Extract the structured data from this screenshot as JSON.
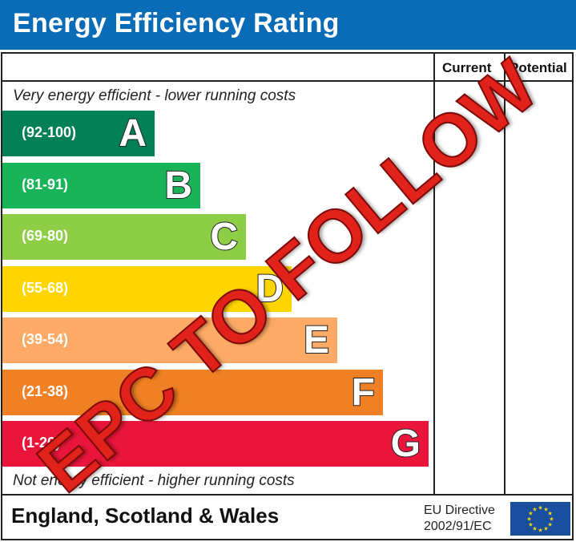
{
  "header": {
    "title": "Energy Efficiency Rating"
  },
  "columns": {
    "current": "Current",
    "potential": "Potential"
  },
  "captions": {
    "top": "Very energy efficient - lower running costs",
    "bottom": "Not energy efficient - higher running costs"
  },
  "chart_data": {
    "type": "bar",
    "title": "Energy Efficiency Rating",
    "categories": [
      "A",
      "B",
      "C",
      "D",
      "E",
      "F",
      "G"
    ],
    "ranges": [
      "(92-100)",
      "(81-91)",
      "(69-80)",
      "(55-68)",
      "(39-54)",
      "(21-38)",
      "(1-20)"
    ],
    "colors": [
      "#008054",
      "#19b459",
      "#8dce46",
      "#ffd500",
      "#fcaa65",
      "#ef8023",
      "#e9153b"
    ],
    "current": null,
    "potential": null
  },
  "stamp": {
    "text": "EPC TO FOLLOW"
  },
  "footer": {
    "region": "England, Scotland & Wales",
    "directive_line1": "EU Directive",
    "directive_line2": "2002/91/EC"
  }
}
